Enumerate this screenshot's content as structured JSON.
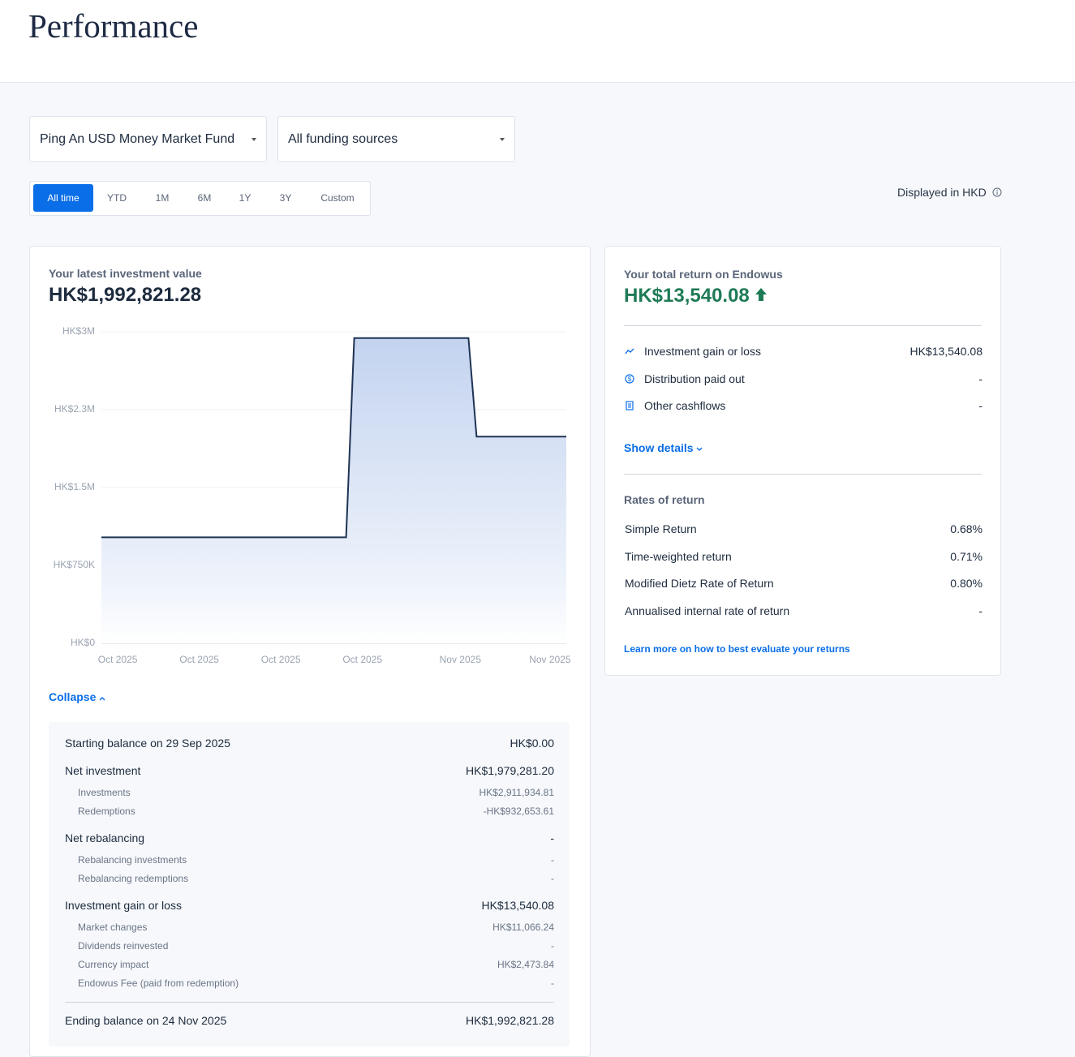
{
  "header": {
    "title": "Performance"
  },
  "filters": {
    "fund": "Ping An USD Money Market Fund",
    "source": "All funding sources"
  },
  "periods": {
    "items": [
      "All time",
      "YTD",
      "1M",
      "6M",
      "1Y",
      "3Y",
      "Custom"
    ],
    "active": 0
  },
  "currency_note": "Displayed in HKD",
  "value_card": {
    "label": "Your latest investment value",
    "value": "HK$1,992,821.28"
  },
  "chart_data": {
    "type": "area",
    "color": "#1f3354",
    "grid": true,
    "categories": [
      null,
      null,
      "Oct 2025",
      null,
      null,
      null,
      null,
      null,
      null,
      null,
      null,
      null,
      "Oct 2025",
      null,
      null,
      null,
      null,
      null,
      null,
      null,
      null,
      null,
      "Oct 2025",
      null,
      null,
      null,
      null,
      null,
      null,
      null,
      null,
      null,
      "Oct 2025",
      null,
      null,
      null,
      null,
      null,
      null,
      null,
      null,
      null,
      null,
      null,
      "Nov 2025",
      null,
      null,
      null,
      null,
      null,
      null,
      null,
      null,
      null,
      null,
      "Nov 2025",
      null,
      null
    ],
    "values": [
      1020000,
      1020000,
      1020000,
      1020000,
      1020000,
      1020000,
      1020000,
      1020000,
      1020000,
      1020000,
      1020000,
      1020000,
      1020000,
      1020000,
      1020000,
      1020000,
      1020000,
      1020000,
      1020000,
      1020000,
      1020000,
      1020000,
      1020000,
      1020000,
      1020000,
      1020000,
      1020000,
      1020000,
      1020000,
      1020000,
      1020000,
      2940000,
      2940000,
      2940000,
      2940000,
      2940000,
      2940000,
      2940000,
      2940000,
      2940000,
      2940000,
      2940000,
      2940000,
      2940000,
      2940000,
      2940000,
      1990000,
      1990000,
      1990000,
      1990000,
      1990000,
      1990000,
      1990000,
      1990000,
      1990000,
      1990000,
      1990000,
      1990000
    ],
    "ylim": [
      0,
      3000000
    ],
    "yticks": [
      {
        "value": 0,
        "label": "HK$0"
      },
      {
        "value": 750000,
        "label": "HK$750K"
      },
      {
        "value": 1500000,
        "label": "HK$1.5M"
      },
      {
        "value": 2250000,
        "label": "HK$2.3M"
      },
      {
        "value": 3000000,
        "label": "HK$3M"
      }
    ]
  },
  "toggle": "Collapse",
  "breakdown": {
    "start": {
      "label": "Starting balance on 29 Sep 2025",
      "value": "HK$0.00"
    },
    "sections": [
      {
        "label": "Net investment",
        "value": "HK$1,979,281.20",
        "items": [
          [
            "Investments",
            "HK$2,911,934.81"
          ],
          [
            "Redemptions",
            "-HK$932,653.61"
          ]
        ]
      },
      {
        "label": "Net rebalancing",
        "value": "-",
        "items": [
          [
            "Rebalancing investments",
            "-"
          ],
          [
            "Rebalancing redemptions",
            "-"
          ]
        ]
      },
      {
        "label": "Investment gain or loss",
        "value": "HK$13,540.08",
        "items": [
          [
            "Market changes",
            "HK$11,066.24"
          ],
          [
            "Dividends reinvested",
            "-"
          ],
          [
            "Currency impact",
            "HK$2,473.84"
          ],
          [
            "Endowus Fee (paid from redemption)",
            "-"
          ]
        ]
      }
    ],
    "end": {
      "label": "Ending balance on 24 Nov 2025",
      "value": "HK$1,992,821.28"
    }
  },
  "return_card": {
    "label": "Your total return on Endowus",
    "value": "HK$13,540.08",
    "items": [
      [
        "Investment gain or loss",
        "HK$13,540.08"
      ],
      [
        "Distribution paid out",
        "-"
      ],
      [
        "Other cashflows",
        "-"
      ]
    ],
    "show_details": "Show details",
    "rates_title": "Rates of return",
    "rates": [
      [
        "Simple Return",
        "0.68%"
      ],
      [
        "Time-weighted return",
        "0.71%"
      ],
      [
        "Modified Dietz Rate of Return",
        "0.80%"
      ],
      [
        "Annualised internal rate of return",
        "-"
      ]
    ],
    "learn_more": "Learn more on how to best evaluate your returns"
  }
}
